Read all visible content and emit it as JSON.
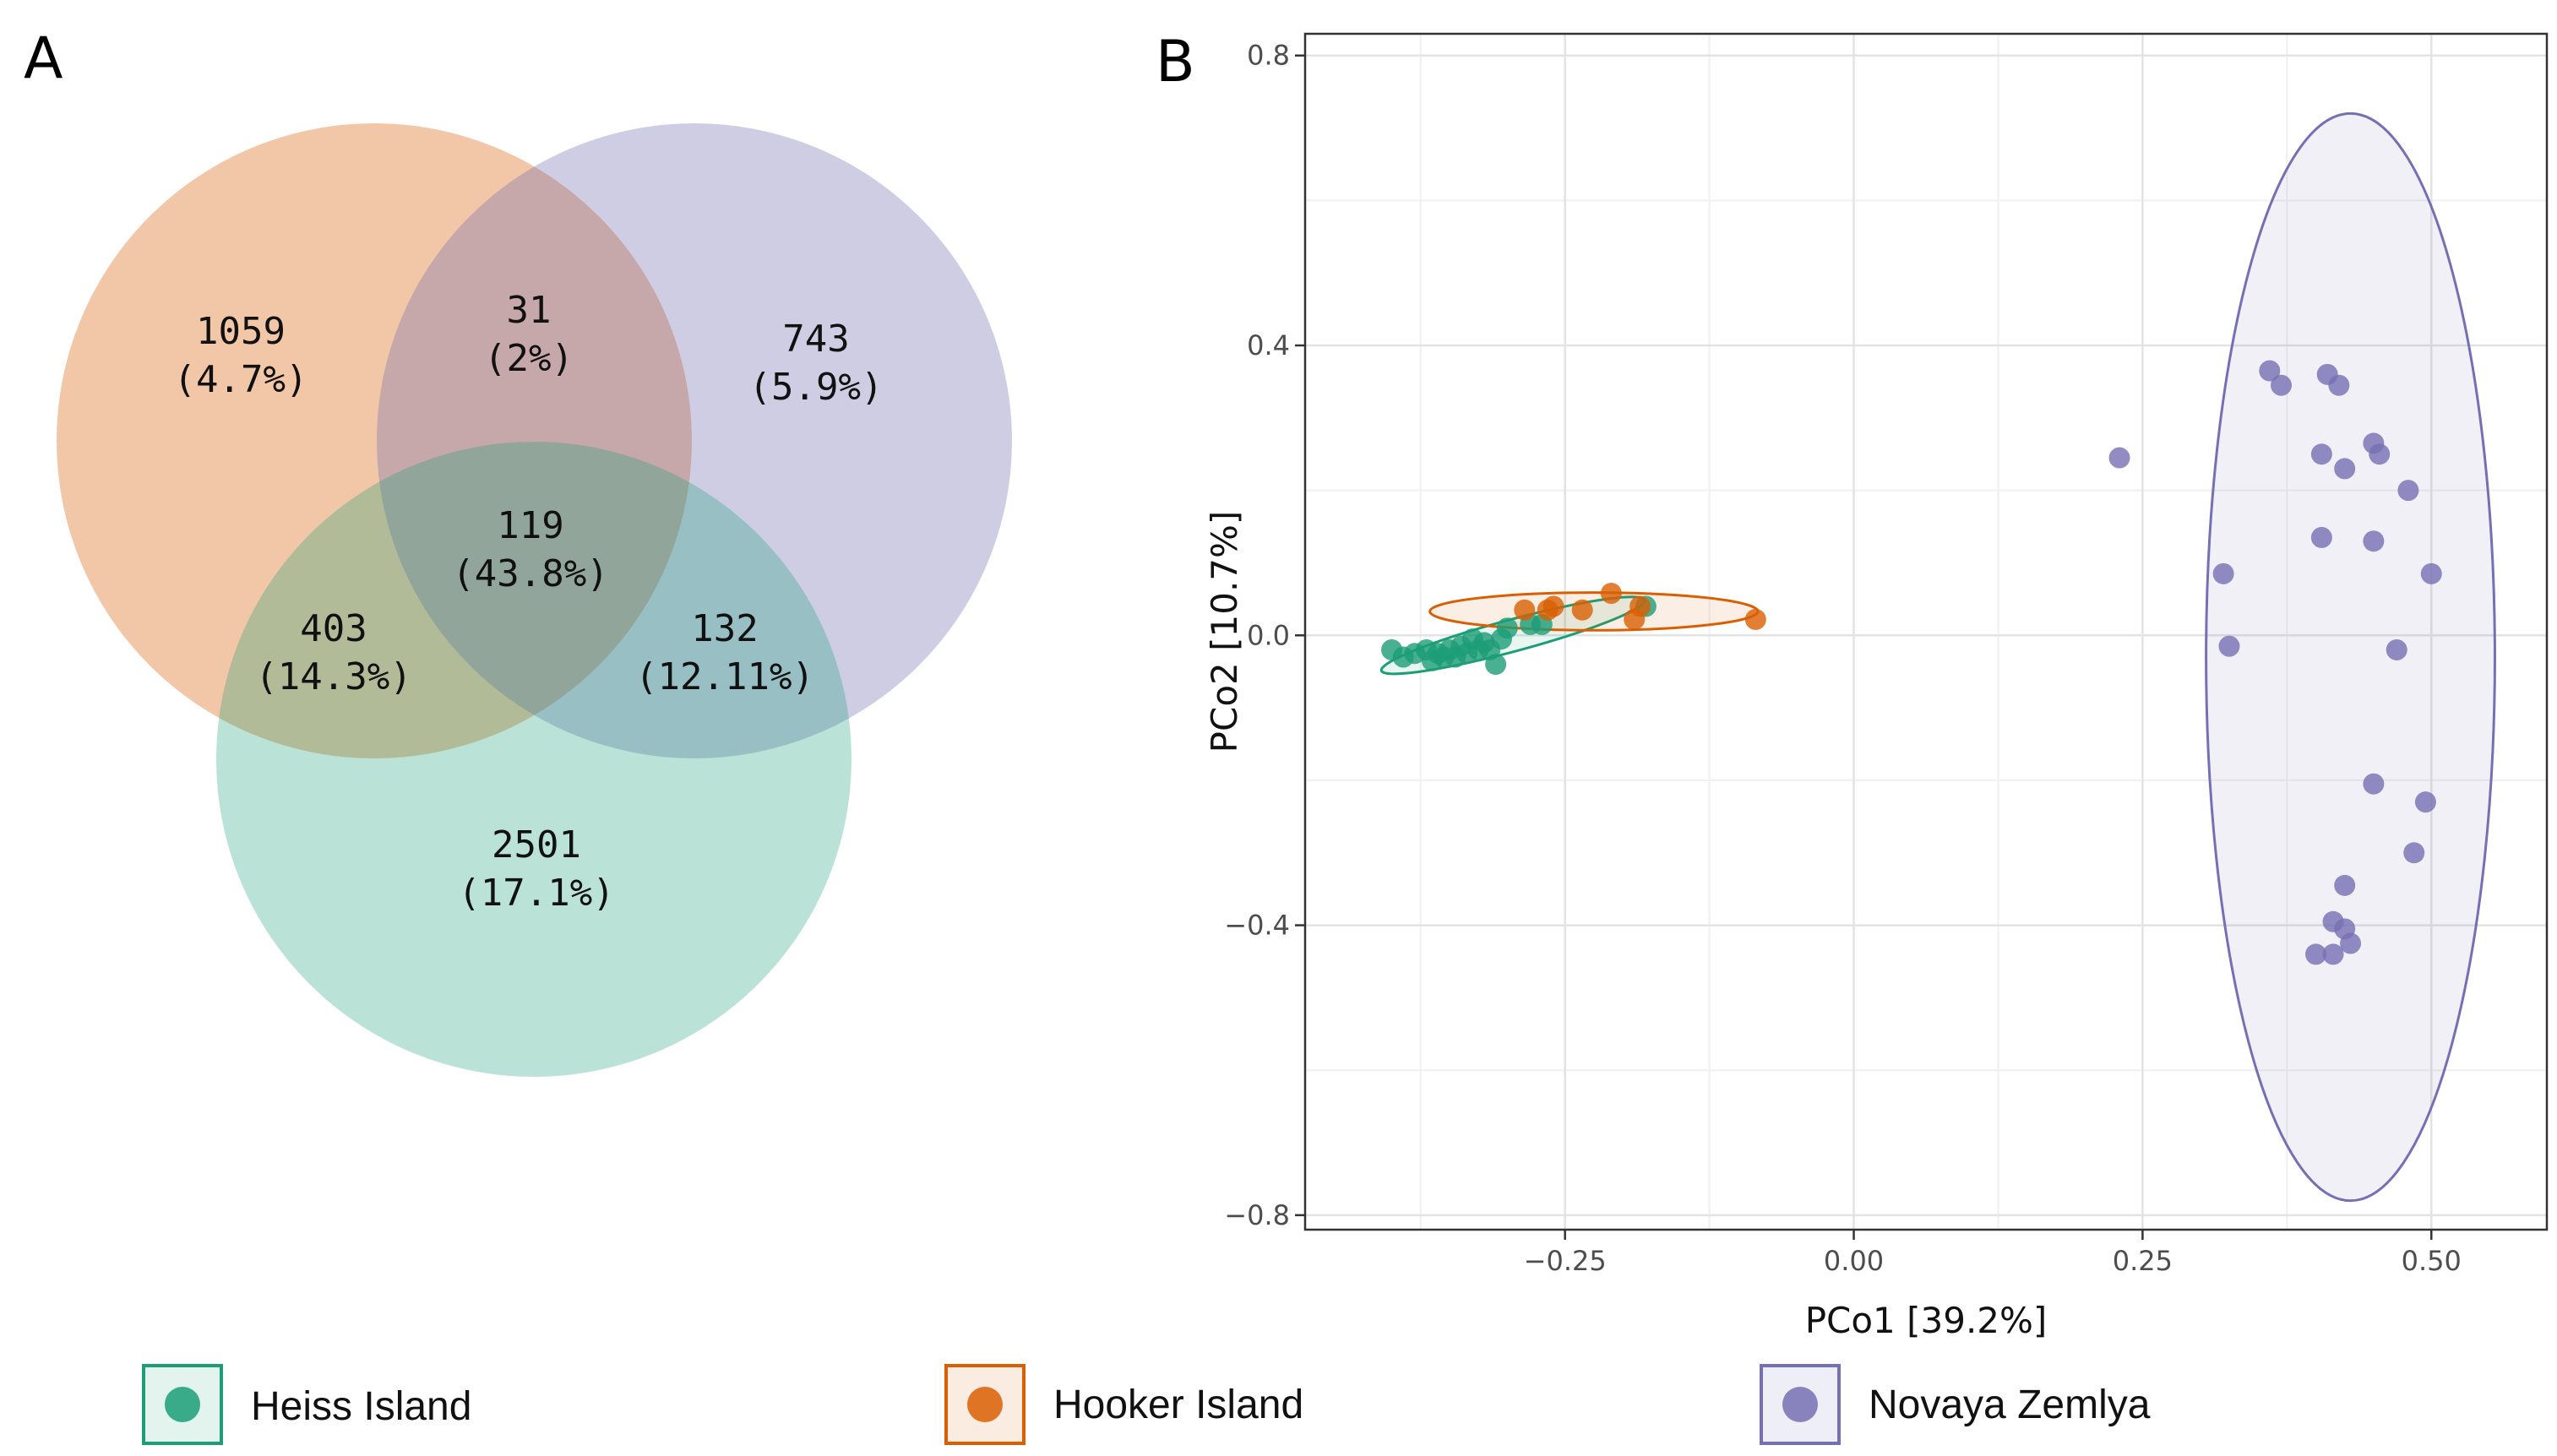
{
  "panels": {
    "a": "A",
    "b": "B"
  },
  "colors": {
    "heiss": "#1b9e77",
    "hooker": "#d95f02",
    "novaya": "#7570b3"
  },
  "chart_data": [
    {
      "type": "venn",
      "sets": [
        {
          "name": "Hooker Island",
          "key": "hooker"
        },
        {
          "name": "Novaya Zemlya",
          "key": "novaya"
        },
        {
          "name": "Heiss Island",
          "key": "heiss"
        }
      ],
      "regions": [
        {
          "sets": [
            "hooker"
          ],
          "count": "1059",
          "percent": "(4.7%)"
        },
        {
          "sets": [
            "hooker",
            "novaya"
          ],
          "count": "31",
          "percent": "(2%)"
        },
        {
          "sets": [
            "novaya"
          ],
          "count": "743",
          "percent": "(5.9%)"
        },
        {
          "sets": [
            "hooker",
            "novaya",
            "heiss"
          ],
          "count": "119",
          "percent": "(43.8%)"
        },
        {
          "sets": [
            "hooker",
            "heiss"
          ],
          "count": "403",
          "percent": "(14.3%)"
        },
        {
          "sets": [
            "novaya",
            "heiss"
          ],
          "count": "132",
          "percent": "(12.11%)"
        },
        {
          "sets": [
            "heiss"
          ],
          "count": "2501",
          "percent": "(17.1%)"
        }
      ]
    },
    {
      "type": "scatter",
      "xlabel": "PCo1 [39.2%]",
      "ylabel": "PCo2 [10.7%]",
      "xlim": [
        -0.475,
        0.6
      ],
      "ylim": [
        -0.82,
        0.83
      ],
      "xticks": [
        -0.25,
        0.0,
        0.25,
        0.5
      ],
      "xtick_labels": [
        "−0.25",
        "0.00",
        "0.25",
        "0.50"
      ],
      "yticks": [
        -0.8,
        -0.4,
        0.0,
        0.4,
        0.8
      ],
      "ytick_labels": [
        "−0.8",
        "−0.4",
        "0.0",
        "0.4",
        "0.8"
      ],
      "grid": true,
      "series": [
        {
          "name": "Heiss Island",
          "key": "heiss",
          "points": [
            [
              -0.4,
              -0.02
            ],
            [
              -0.39,
              -0.03
            ],
            [
              -0.38,
              -0.025
            ],
            [
              -0.37,
              -0.02
            ],
            [
              -0.365,
              -0.035
            ],
            [
              -0.36,
              -0.025
            ],
            [
              -0.355,
              -0.03
            ],
            [
              -0.35,
              -0.02
            ],
            [
              -0.345,
              -0.03
            ],
            [
              -0.34,
              -0.015
            ],
            [
              -0.335,
              -0.025
            ],
            [
              -0.33,
              -0.005
            ],
            [
              -0.325,
              -0.02
            ],
            [
              -0.32,
              -0.01
            ],
            [
              -0.315,
              -0.02
            ],
            [
              -0.31,
              -0.04
            ],
            [
              -0.305,
              -0.005
            ],
            [
              -0.3,
              0.01
            ],
            [
              -0.28,
              0.015
            ],
            [
              -0.27,
              0.015
            ],
            [
              -0.18,
              0.04
            ]
          ],
          "ellipse": {
            "cx": -0.295,
            "cy": 0.0,
            "rx": 0.118,
            "ry": 0.022,
            "angle_deg": 15
          }
        },
        {
          "name": "Hooker Island",
          "key": "hooker",
          "points": [
            [
              -0.285,
              0.035
            ],
            [
              -0.265,
              0.035
            ],
            [
              -0.26,
              0.04
            ],
            [
              -0.235,
              0.035
            ],
            [
              -0.21,
              0.058
            ],
            [
              -0.19,
              0.022
            ],
            [
              -0.185,
              0.04
            ],
            [
              -0.085,
              0.022
            ]
          ],
          "ellipse": {
            "cx": -0.225,
            "cy": 0.033,
            "rx": 0.142,
            "ry": 0.026,
            "angle_deg": 0
          }
        },
        {
          "name": "Novaya Zemlya",
          "key": "novaya",
          "points": [
            [
              0.23,
              0.245
            ],
            [
              0.36,
              0.365
            ],
            [
              0.37,
              0.345
            ],
            [
              0.41,
              0.36
            ],
            [
              0.42,
              0.345
            ],
            [
              0.405,
              0.25
            ],
            [
              0.425,
              0.23
            ],
            [
              0.45,
              0.265
            ],
            [
              0.455,
              0.25
            ],
            [
              0.48,
              0.2
            ],
            [
              0.405,
              0.135
            ],
            [
              0.45,
              0.13
            ],
            [
              0.32,
              0.085
            ],
            [
              0.5,
              0.085
            ],
            [
              0.325,
              -0.015
            ],
            [
              0.47,
              -0.02
            ],
            [
              0.45,
              -0.205
            ],
            [
              0.495,
              -0.23
            ],
            [
              0.485,
              -0.3
            ],
            [
              0.425,
              -0.345
            ],
            [
              0.415,
              -0.395
            ],
            [
              0.425,
              -0.405
            ],
            [
              0.43,
              -0.425
            ],
            [
              0.4,
              -0.44
            ],
            [
              0.415,
              -0.44
            ]
          ],
          "ellipse": {
            "cx": 0.43,
            "cy": -0.03,
            "rx": 0.125,
            "ry": 0.75,
            "angle_deg": 0
          }
        }
      ],
      "legend": {
        "position": "bottom",
        "items": [
          {
            "label": "Heiss Island",
            "key": "heiss"
          },
          {
            "label": "Hooker Island",
            "key": "hooker"
          },
          {
            "label": "Novaya Zemlya",
            "key": "novaya"
          }
        ]
      }
    }
  ]
}
